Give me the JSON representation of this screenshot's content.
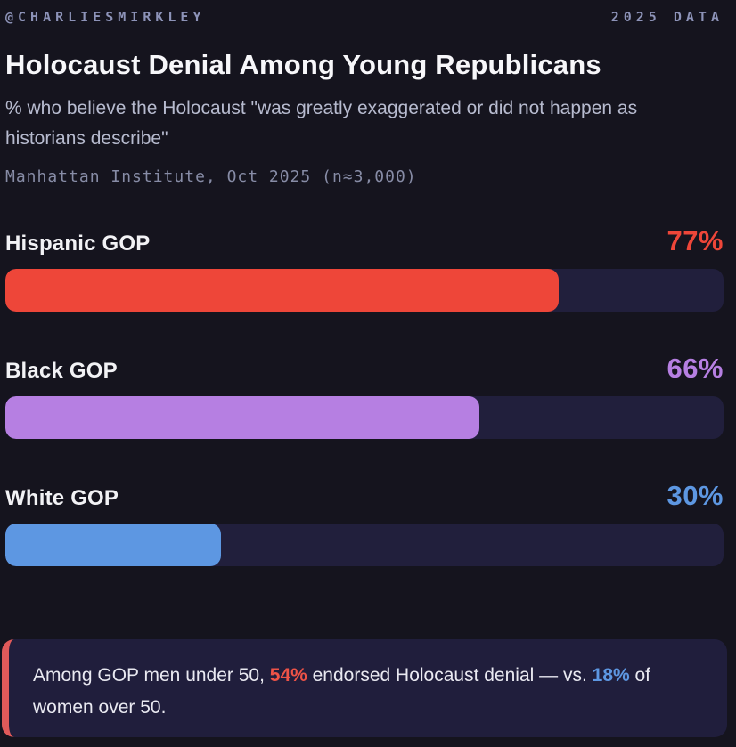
{
  "header": {
    "handle": "@CHARLIESMIRKLEY",
    "data_tag": "2025 DATA"
  },
  "title": "Holocaust Denial Among Young Republicans",
  "subtitle": "% who believe the Holocaust \"was greatly exaggerated or did not happen as historians describe\"",
  "source": "Manhattan Institute, Oct 2025 (n≈3,000)",
  "chart_data": {
    "type": "bar",
    "orientation": "horizontal",
    "title": "Holocaust Denial Among Young Republicans",
    "categories": [
      "Hispanic GOP",
      "Black GOP",
      "White GOP"
    ],
    "values": [
      77,
      66,
      30
    ],
    "value_labels": [
      "77%",
      "66%",
      "30%"
    ],
    "bar_colors": [
      "#ee4639",
      "#b67fe2",
      "#5d97e2"
    ],
    "track_color": "#211f3c",
    "xlim": [
      0,
      100
    ],
    "grid": false,
    "legend": false
  },
  "footnote": {
    "part1": "Among GOP men under 50, ",
    "stat1": "54%",
    "part2": " endorsed Holocaust denial — vs. ",
    "stat2": "18%",
    "part3": " of women over 50.",
    "stat1_color": "#ee5347",
    "stat2_color": "#5d97e2",
    "accent_color": "#e05a5a",
    "box_color": "#201e3c"
  },
  "colors": {
    "background": "#15141e",
    "title_text": "#f7f7fa",
    "subtitle_text": "#b7bbcf",
    "source_text": "#878ca6",
    "header_text": "#8d93b8"
  }
}
